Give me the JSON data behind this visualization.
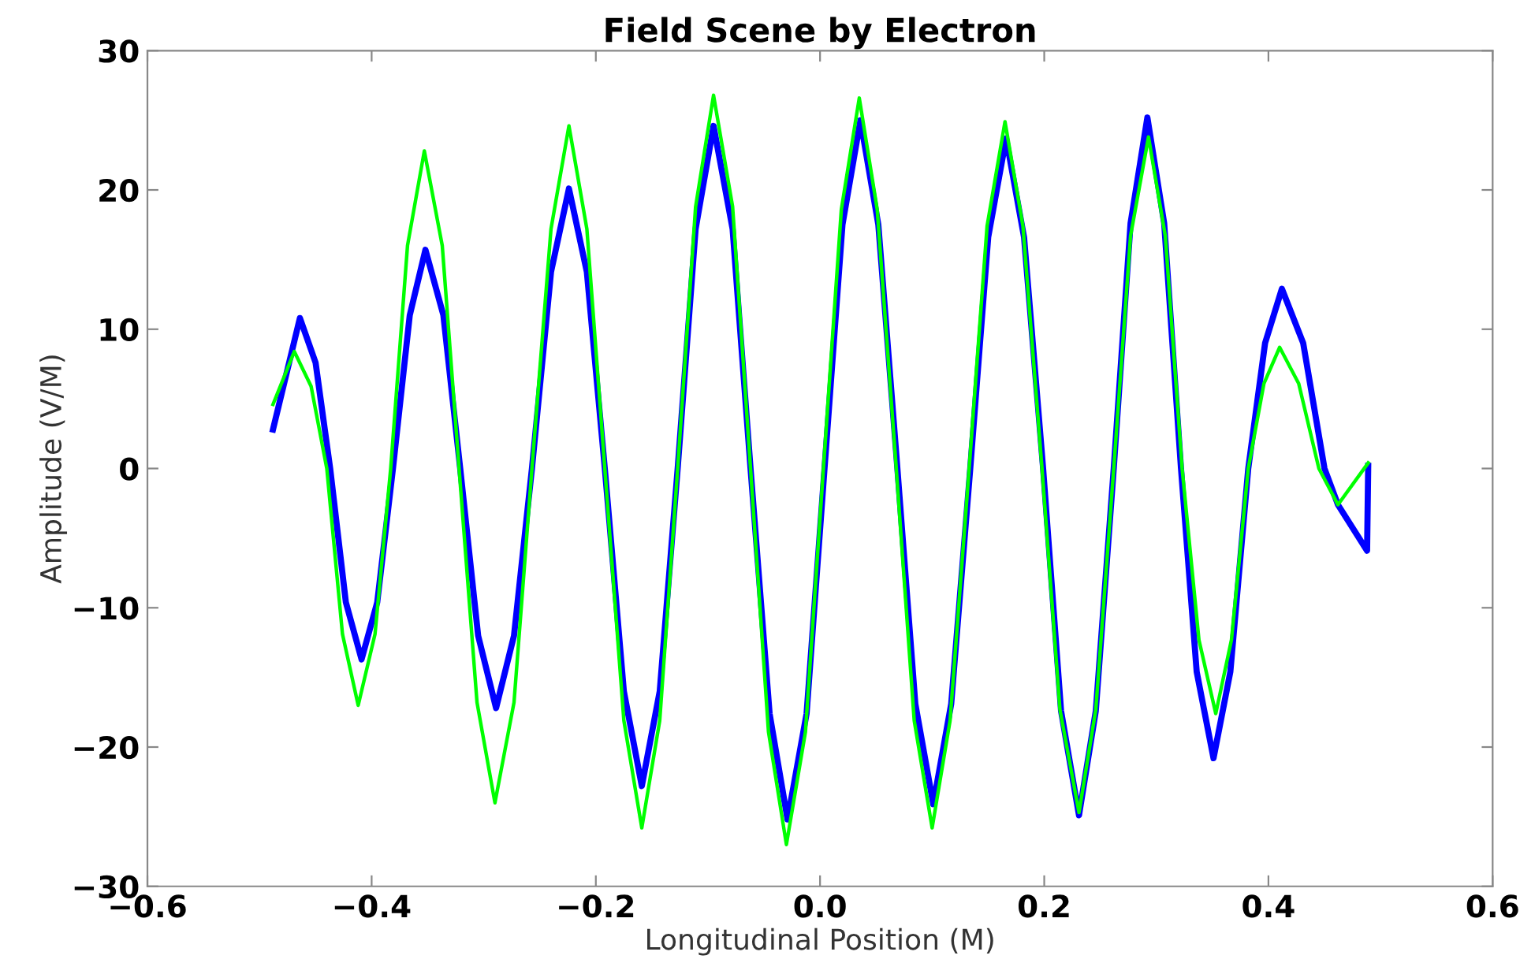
{
  "chart_data": {
    "type": "line",
    "title": "Field Scene by Electron",
    "xlabel": "Longitudinal Position (M)",
    "ylabel": "Amplitude (V/M)",
    "xlim": [
      -0.6,
      0.6
    ],
    "xticks": [
      {
        "value": -0.6,
        "label": "−0.6"
      },
      {
        "value": -0.4,
        "label": "−0.4"
      },
      {
        "value": -0.2,
        "label": "−0.2"
      },
      {
        "value": 0.0,
        "label": "0.0"
      },
      0.2,
      0.4,
      0.6
    ],
    "ylim": [
      -30,
      30
    ],
    "yticks": [
      {
        "value": -30,
        "label": "−30"
      },
      {
        "value": -20,
        "label": "−20"
      },
      {
        "value": -10,
        "label": "−10"
      },
      0,
      10,
      20,
      30
    ],
    "grid": false,
    "legend": false,
    "marker": "none",
    "line_style": "solid",
    "series": [
      {
        "color": "#0000ff",
        "x": [
          -0.488,
          -0.464,
          -0.45,
          -0.437,
          -0.423,
          -0.409,
          -0.395,
          -0.381,
          -0.366,
          -0.352,
          -0.336,
          -0.321,
          -0.305,
          -0.289,
          -0.273,
          -0.257,
          -0.24,
          -0.224,
          -0.208,
          -0.192,
          -0.175,
          -0.159,
          -0.143,
          -0.127,
          -0.111,
          -0.095,
          -0.078,
          -0.062,
          -0.045,
          -0.029,
          -0.012,
          0.004,
          0.02,
          0.036,
          0.052,
          0.069,
          0.085,
          0.101,
          0.117,
          0.134,
          0.15,
          0.166,
          0.182,
          0.199,
          0.215,
          0.231,
          0.246,
          0.262,
          0.277,
          0.292,
          0.307,
          0.322,
          0.336,
          0.351,
          0.366,
          0.382,
          0.397,
          0.412,
          0.431,
          0.45,
          0.462,
          0.488,
          0.489
        ],
        "values": [
          2.8,
          10.8,
          7.6,
          0,
          -9.6,
          -13.7,
          -9.6,
          0,
          11.0,
          15.7,
          11.0,
          0,
          -12.0,
          -17.2,
          -12.0,
          0,
          14.1,
          20.1,
          14.1,
          0,
          -16.0,
          -22.8,
          -16.0,
          0,
          17.2,
          24.6,
          17.2,
          0,
          -17.6,
          -25.2,
          -17.6,
          0,
          17.5,
          25.0,
          17.5,
          0,
          -16.9,
          -24.1,
          -16.9,
          0,
          16.6,
          23.7,
          16.6,
          0,
          -17.4,
          -24.9,
          -17.4,
          0,
          17.6,
          25.2,
          17.6,
          0,
          -14.6,
          -20.8,
          -14.6,
          0,
          9.0,
          12.9,
          9.0,
          0,
          -2.6,
          -5.9,
          0.2
        ]
      },
      {
        "color": "#00ff00",
        "x": [
          -0.488,
          -0.469,
          -0.454,
          -0.44,
          -0.426,
          -0.412,
          -0.397,
          -0.383,
          -0.368,
          -0.353,
          -0.337,
          -0.322,
          -0.306,
          -0.29,
          -0.273,
          -0.257,
          -0.24,
          -0.224,
          -0.208,
          -0.192,
          -0.175,
          -0.159,
          -0.143,
          -0.127,
          -0.111,
          -0.095,
          -0.078,
          -0.062,
          -0.046,
          -0.03,
          -0.013,
          0.003,
          0.019,
          0.035,
          0.051,
          0.068,
          0.084,
          0.1,
          0.116,
          0.133,
          0.149,
          0.165,
          0.181,
          0.198,
          0.214,
          0.231,
          0.246,
          0.262,
          0.277,
          0.293,
          0.308,
          0.323,
          0.338,
          0.353,
          0.367,
          0.382,
          0.396,
          0.41,
          0.427,
          0.445,
          0.462,
          0.489
        ],
        "values": [
          4.6,
          8.4,
          5.9,
          0,
          -11.9,
          -17.0,
          -11.9,
          0,
          16.0,
          22.8,
          16.0,
          0,
          -16.8,
          -24.0,
          -16.8,
          0,
          17.2,
          24.6,
          17.2,
          0,
          -18.1,
          -25.8,
          -18.1,
          0,
          18.8,
          26.8,
          18.8,
          0,
          -18.9,
          -27.0,
          -18.9,
          0,
          18.6,
          26.6,
          18.6,
          0,
          -18.1,
          -25.8,
          -18.1,
          0,
          17.4,
          24.9,
          17.4,
          0,
          -17.3,
          -24.7,
          -17.3,
          0,
          16.7,
          23.8,
          16.7,
          0,
          -12.3,
          -17.6,
          -12.3,
          0,
          6.1,
          8.7,
          6.1,
          0,
          -2.6,
          0.4
        ]
      }
    ]
  }
}
